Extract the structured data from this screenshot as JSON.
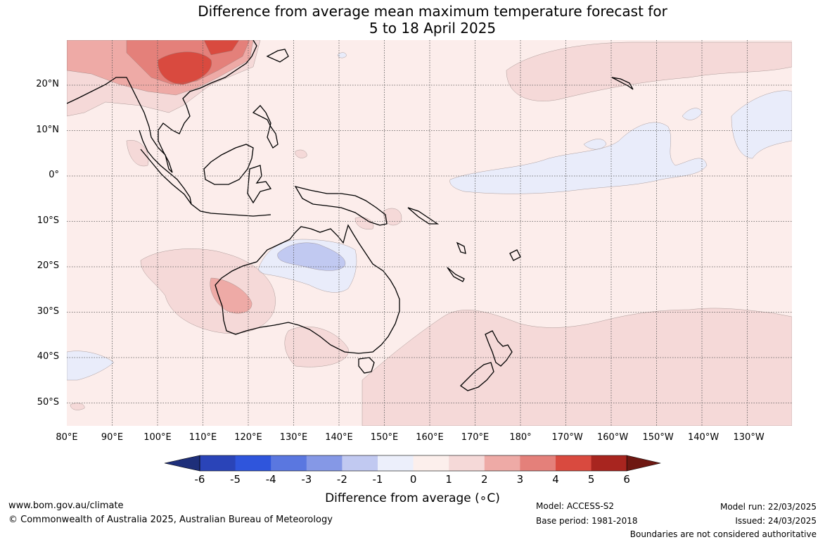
{
  "title": {
    "line1": "Difference from average mean maximum temperature forecast for",
    "line2": "5 to 18 April 2025"
  },
  "axes": {
    "lon_labels": [
      "80°E",
      "90°E",
      "100°E",
      "110°E",
      "120°E",
      "130°E",
      "140°E",
      "150°E",
      "160°E",
      "170°E",
      "180°",
      "170°W",
      "160°W",
      "150°W",
      "140°W",
      "130°W"
    ],
    "lat_labels": [
      "20°N",
      "10°N",
      "0°",
      "10°S",
      "20°S",
      "30°S",
      "40°S",
      "50°S"
    ]
  },
  "colorbar": {
    "ticks": [
      "-6",
      "-5",
      "-4",
      "-3",
      "-2",
      "-1",
      "0",
      "1",
      "2",
      "3",
      "4",
      "5",
      "6"
    ],
    "colors": [
      "#1e2f7a",
      "#2a44b8",
      "#2f55dc",
      "#5a77e0",
      "#8598e6",
      "#c1c9f1",
      "#eceffb",
      "#fcefec",
      "#f5d9d8",
      "#eeaaa6",
      "#e4807a",
      "#d94a3f",
      "#a8251f",
      "#6e1812"
    ],
    "label": "Difference from average (∘C)"
  },
  "footer": {
    "website": "www.bom.gov.au/climate",
    "copyright": "© Commonwealth of Australia 2025, Australian Bureau of Meteorology",
    "model": "Model: ACCESS-S2",
    "base_period": "Base period: 1981-2018",
    "model_run": "Model run: 22/03/2025",
    "issued": "Issued: 24/03/2025",
    "disclaimer": "Boundaries are not considered authoritative"
  },
  "map_colors": {
    "background": "#fcedeb",
    "warm1": "#f5d9d8",
    "warm2": "#eeaaa6",
    "warm3": "#e4807a",
    "warm4": "#d94a3f",
    "cool1": "#e9ecfa",
    "cool2": "#c1c9f1",
    "coast": "#000000",
    "grid": "#555555"
  }
}
